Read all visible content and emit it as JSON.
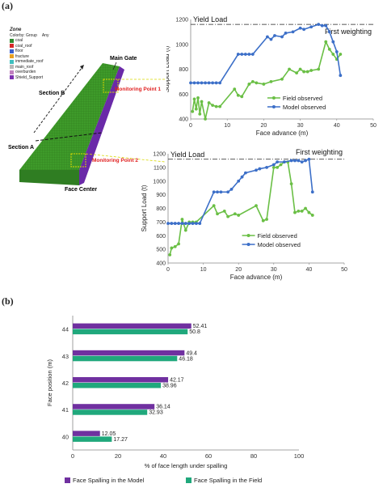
{
  "panel_a_label": "(a)",
  "panel_b_label": "(b)",
  "model_figure": {
    "legend_title": "Zone",
    "legend_header": [
      "Colorby: Group",
      "Any"
    ],
    "legend_items": [
      {
        "label": "coal",
        "color": "#2e8b2e"
      },
      {
        "label": "coal_roof",
        "color": "#d62828"
      },
      {
        "label": "floor",
        "color": "#3a5fcd"
      },
      {
        "label": "fracture",
        "color": "#e8a020"
      },
      {
        "label": "immediate_roof",
        "color": "#3fbfbf"
      },
      {
        "label": "main_roof",
        "color": "#b8b8b8"
      },
      {
        "label": "overburden",
        "color": "#c080c0"
      },
      {
        "label": "Shield_Support",
        "color": "#7b2fb0"
      }
    ],
    "labels": {
      "main_gate": "Main Gate",
      "section_b": "Section B",
      "section_a": "Section A",
      "monitoring_point_1": "Monitoring Point 1",
      "monitoring_point_2": "Monitoring Point 2",
      "face_center": "Face Center"
    }
  },
  "chart_data": [
    {
      "type": "line",
      "id": "top-chart",
      "xlabel": "Face advance (m)",
      "ylabel": "Support Load (t)",
      "xlim": [
        0,
        50
      ],
      "ylim": [
        400,
        1200
      ],
      "xticks": [
        0,
        10,
        20,
        30,
        40,
        50
      ],
      "yticks": [
        400,
        600,
        800,
        1000,
        1200
      ],
      "annotations": [
        "Yield Load",
        "First weighting"
      ],
      "yield_load": 1160,
      "legend_position": "bottom-right",
      "series": [
        {
          "name": "Field observed",
          "color": "#6abf45",
          "x": [
            0.5,
            1,
            1.5,
            2,
            2.5,
            3,
            4,
            5,
            6,
            7,
            8,
            12,
            13,
            14,
            16,
            17,
            18,
            20,
            22,
            25,
            27,
            29,
            30,
            31,
            32,
            33,
            35,
            37,
            38,
            39,
            40,
            41
          ],
          "y": [
            460,
            560,
            480,
            570,
            440,
            540,
            400,
            530,
            510,
            500,
            500,
            640,
            590,
            580,
            680,
            700,
            690,
            680,
            700,
            720,
            800,
            770,
            800,
            780,
            780,
            790,
            800,
            1020,
            960,
            920,
            880,
            920
          ]
        },
        {
          "name": "Model observed",
          "color": "#3c6fc8",
          "x": [
            0,
            1,
            2,
            3,
            4,
            5,
            6,
            7,
            8,
            13,
            14,
            15,
            16,
            17,
            21,
            22,
            23,
            25,
            26,
            28,
            30,
            31,
            33,
            35,
            36,
            37,
            38,
            39,
            40,
            41
          ],
          "y": [
            690,
            690,
            690,
            690,
            690,
            690,
            690,
            690,
            690,
            920,
            920,
            920,
            920,
            920,
            1060,
            1040,
            1070,
            1060,
            1090,
            1100,
            1130,
            1120,
            1140,
            1160,
            1150,
            1150,
            1100,
            1020,
            940,
            750
          ]
        }
      ]
    },
    {
      "type": "line",
      "id": "middle-chart",
      "xlabel": "Face advance (m)",
      "ylabel": "Support Load (t)",
      "xlim": [
        0,
        50
      ],
      "ylim": [
        400,
        1200
      ],
      "xticks": [
        0,
        10,
        20,
        30,
        40,
        50
      ],
      "yticks": [
        400,
        500,
        600,
        700,
        800,
        900,
        1000,
        1100,
        1200
      ],
      "annotations": [
        "Yield Load",
        "First weighting"
      ],
      "yield_load": 1160,
      "legend_position": "bottom-right",
      "series": [
        {
          "name": "Field observed",
          "color": "#6abf45",
          "x": [
            0.5,
            1,
            2,
            3,
            4,
            5,
            6,
            7,
            8,
            13,
            14,
            16,
            17,
            19,
            20,
            25,
            27,
            28,
            30,
            31,
            32,
            33,
            34,
            35,
            36,
            37,
            38,
            39,
            40,
            41
          ],
          "y": [
            460,
            510,
            520,
            540,
            720,
            640,
            700,
            700,
            700,
            820,
            760,
            780,
            740,
            760,
            750,
            820,
            710,
            720,
            1100,
            1100,
            1120,
            1140,
            1140,
            980,
            770,
            780,
            780,
            800,
            770,
            750
          ]
        },
        {
          "name": "Model observed",
          "color": "#3c6fc8",
          "x": [
            0,
            1,
            2,
            3,
            4,
            5,
            6,
            7,
            8,
            9,
            13,
            14,
            15,
            17,
            18,
            20,
            21,
            22,
            25,
            26,
            28,
            30,
            31,
            33,
            35,
            36,
            37,
            38,
            39,
            40,
            41
          ],
          "y": [
            690,
            690,
            690,
            690,
            690,
            690,
            690,
            690,
            690,
            690,
            920,
            920,
            920,
            920,
            940,
            1000,
            1030,
            1060,
            1080,
            1090,
            1100,
            1120,
            1140,
            1140,
            1150,
            1150,
            1150,
            1140,
            1150,
            1160,
            920
          ]
        }
      ]
    },
    {
      "type": "bar",
      "orientation": "horizontal",
      "id": "bottom-chart",
      "xlabel": "% of face length under spalling",
      "ylabel": "Face position (m)",
      "xlim": [
        0,
        100
      ],
      "xticks": [
        0,
        20,
        40,
        60,
        80,
        100
      ],
      "categories": [
        "44",
        "43",
        "42",
        "41",
        "40"
      ],
      "legend_position": "bottom",
      "series": [
        {
          "name": "Face Spalling in the Model",
          "color": "#7030a0",
          "values": [
            52.41,
            49.4,
            42.17,
            36.14,
            12.05
          ]
        },
        {
          "name": "Face Spalling in the Field",
          "color": "#20a87c",
          "values": [
            50.8,
            46.18,
            38.96,
            32.93,
            17.27
          ]
        }
      ]
    }
  ]
}
